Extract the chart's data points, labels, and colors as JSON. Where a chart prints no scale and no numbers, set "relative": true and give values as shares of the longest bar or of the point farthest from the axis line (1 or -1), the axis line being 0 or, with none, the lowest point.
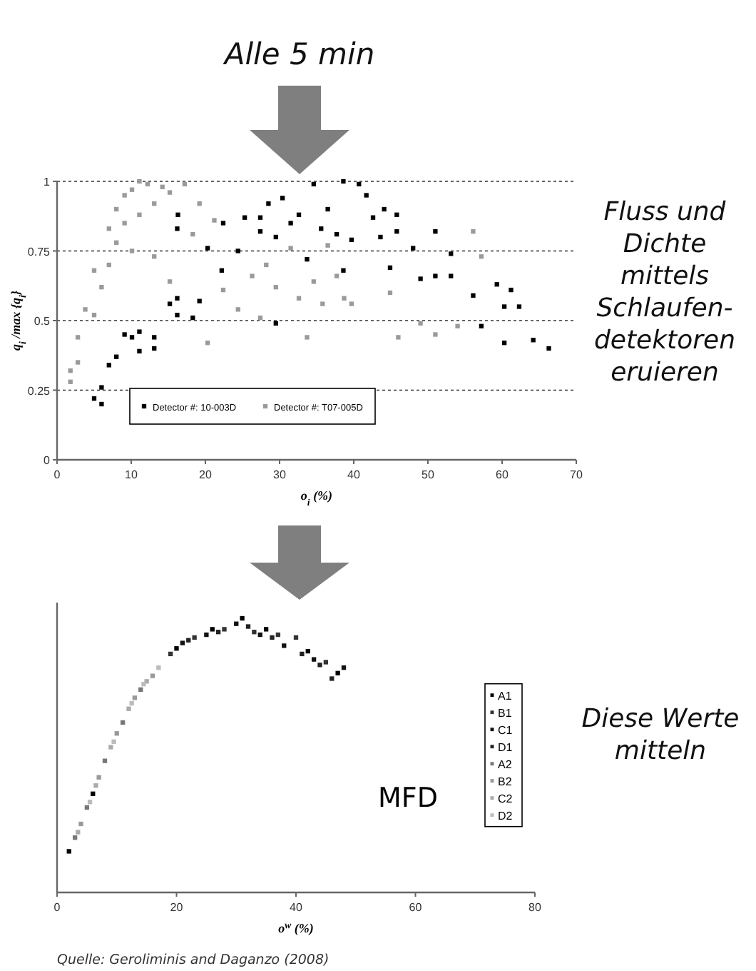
{
  "chart_data": [
    {
      "type": "scatter",
      "ylabel": "q$_{i}$ /max {q$_{i}$}",
      "xlabel": "o$_{i}$ (%)",
      "xlim": [
        0,
        70
      ],
      "xticks": [
        0,
        10,
        20,
        30,
        40,
        50,
        60,
        70
      ],
      "ylim": [
        0,
        1
      ],
      "yticks": [
        0,
        0.25,
        0.5,
        0.75,
        1
      ],
      "grid": "y",
      "legend": "bottom",
      "marker": "square",
      "annotations": [
        "Alle 5 min",
        "Fluss und Dichte mittels Schlaufen-detektoren eruieren"
      ],
      "series": [
        {
          "name": "Detector #: 10-003D",
          "color": "#000000",
          "x": [
            5.0,
            6.0,
            6.0,
            7.0,
            8.0,
            9.1,
            10.1,
            11.1,
            11.1,
            13.1,
            13.1,
            15.2,
            16.2,
            16.2,
            18.3,
            19.2,
            20.3,
            22.2,
            22.4,
            24.4,
            25.3,
            27.4,
            27.4,
            28.5,
            29.5,
            30.4,
            31.5,
            32.6,
            33.7,
            34.6,
            35.6,
            36.5,
            37.7,
            38.6,
            38.6,
            39.7,
            40.7,
            41.7,
            42.6,
            43.6,
            44.1,
            44.9,
            45.8,
            45.8,
            48.0,
            49.0,
            51.0,
            51.0,
            53.1,
            53.1,
            56.1,
            57.2,
            59.3,
            60.3,
            60.3,
            61.2,
            62.3,
            64.2,
            66.3,
            29.5,
            16.2,
            16.3
          ],
          "values": [
            0.22,
            0.2,
            0.26,
            0.34,
            0.37,
            0.45,
            0.44,
            0.46,
            0.39,
            0.44,
            0.4,
            0.56,
            0.58,
            0.52,
            0.51,
            0.57,
            0.76,
            0.68,
            0.85,
            0.75,
            0.87,
            0.82,
            0.87,
            0.92,
            0.8,
            0.94,
            0.85,
            0.88,
            0.72,
            0.99,
            0.83,
            0.9,
            0.81,
            1.0,
            0.68,
            0.79,
            0.99,
            0.95,
            0.87,
            0.8,
            0.9,
            0.69,
            0.82,
            0.88,
            0.76,
            0.65,
            0.82,
            0.66,
            0.74,
            0.66,
            0.59,
            0.48,
            0.63,
            0.55,
            0.42,
            0.61,
            0.55,
            0.43,
            0.4,
            0.49,
            0.83,
            0.88
          ]
        },
        {
          "name": "Detector #: T07-005D",
          "color": "#9a9a9a",
          "x": [
            1.8,
            1.8,
            2.8,
            2.8,
            3.8,
            5.0,
            5.0,
            6.0,
            7.0,
            7.0,
            8.0,
            8.0,
            9.1,
            9.1,
            10.1,
            10.1,
            11.1,
            11.1,
            12.2,
            13.1,
            13.1,
            14.2,
            15.2,
            15.2,
            17.2,
            18.3,
            19.2,
            20.3,
            21.2,
            22.4,
            24.4,
            26.3,
            27.4,
            29.5,
            31.5,
            32.6,
            33.7,
            34.6,
            35.8,
            37.7,
            38.7,
            39.7,
            44.9,
            46.0,
            49.0,
            51.0,
            54.0,
            56.1,
            57.2,
            28.2,
            36.5
          ],
          "values": [
            0.32,
            0.28,
            0.44,
            0.35,
            0.54,
            0.68,
            0.52,
            0.62,
            0.83,
            0.7,
            0.9,
            0.78,
            0.95,
            0.85,
            0.97,
            0.75,
            1.0,
            0.88,
            0.99,
            0.92,
            0.73,
            0.98,
            0.96,
            0.64,
            0.99,
            0.81,
            0.92,
            0.42,
            0.86,
            0.61,
            0.54,
            0.66,
            0.51,
            0.62,
            0.76,
            0.58,
            0.44,
            0.64,
            0.56,
            0.66,
            0.58,
            0.56,
            0.6,
            0.44,
            0.49,
            0.45,
            0.48,
            0.82,
            0.73,
            0.7,
            0.77
          ]
        }
      ]
    },
    {
      "type": "scatter",
      "xlabel": "o$^{w}$ (%)",
      "xlim": [
        0,
        80
      ],
      "xticks": [
        0,
        20,
        40,
        60,
        80
      ],
      "relative": true,
      "tick_labels": "x",
      "legend": "right",
      "marker": "square",
      "annotations": [
        "MFD",
        "Diese Werte mitteln",
        "Quelle: Geroliminis and Daganzo (2008)"
      ],
      "series": [
        {
          "name": "A1",
          "color": "#000000",
          "x": [
            2,
            6,
            20,
            26,
            31,
            35,
            42,
            47
          ],
          "values": [
            0.15,
            0.36,
            0.89,
            0.96,
            1.0,
            0.96,
            0.88,
            0.8
          ]
        },
        {
          "name": "B1",
          "color": "#333333",
          "x": [
            19,
            23,
            28,
            33,
            37,
            40,
            45
          ],
          "values": [
            0.87,
            0.93,
            0.96,
            0.95,
            0.94,
            0.93,
            0.84
          ]
        },
        {
          "name": "C1",
          "color": "#111111",
          "x": [
            21,
            25,
            30,
            34,
            38,
            43,
            48
          ],
          "values": [
            0.91,
            0.94,
            0.98,
            0.94,
            0.9,
            0.85,
            0.82
          ]
        },
        {
          "name": "D1",
          "color": "#222222",
          "x": [
            22,
            27,
            32,
            36,
            41,
            44,
            46
          ],
          "values": [
            0.92,
            0.95,
            0.97,
            0.93,
            0.87,
            0.83,
            0.78
          ]
        },
        {
          "name": "A2",
          "color": "#777777",
          "x": [
            3,
            5,
            8,
            11,
            14
          ],
          "values": [
            0.2,
            0.31,
            0.48,
            0.62,
            0.74
          ]
        },
        {
          "name": "B2",
          "color": "#999999",
          "x": [
            4,
            7,
            10,
            13,
            16
          ],
          "values": [
            0.25,
            0.42,
            0.58,
            0.71,
            0.79
          ]
        },
        {
          "name": "C2",
          "color": "#aaaaaa",
          "x": [
            3.5,
            6.5,
            9,
            12,
            15
          ],
          "values": [
            0.22,
            0.39,
            0.53,
            0.67,
            0.77
          ]
        },
        {
          "name": "D2",
          "color": "#bbbbbb",
          "x": [
            5.5,
            9.5,
            12.5,
            14.5,
            17
          ],
          "values": [
            0.33,
            0.55,
            0.69,
            0.76,
            0.82
          ]
        }
      ]
    }
  ]
}
